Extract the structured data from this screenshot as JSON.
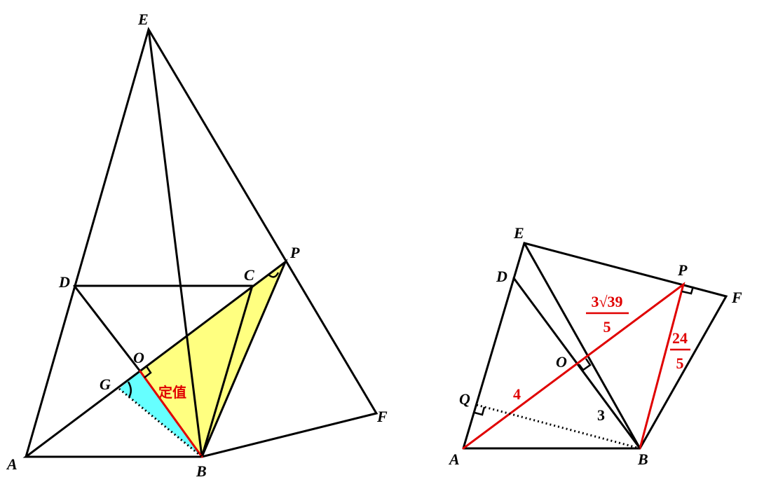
{
  "left": {
    "points": [
      "E",
      "D",
      "C",
      "P",
      "O",
      "G",
      "A",
      "B",
      "F"
    ],
    "note": "定值"
  },
  "right": {
    "points": [
      "E",
      "D",
      "P",
      "F",
      "O",
      "Q",
      "A",
      "B"
    ],
    "ap": {
      "numerator": "3√39",
      "denominator": "5"
    },
    "pb": {
      "numerator": "24",
      "denominator": "5"
    },
    "lengths": [
      "4",
      "3"
    ]
  }
}
